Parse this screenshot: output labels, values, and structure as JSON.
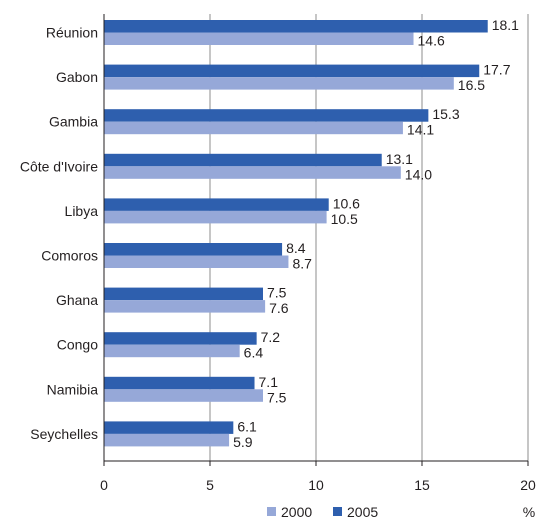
{
  "chart_data": {
    "type": "bar",
    "orientation": "horizontal",
    "categories": [
      "Réunion",
      "Gabon",
      "Gambia",
      "Côte d'Ivoire",
      "Libya",
      "Comoros",
      "Ghana",
      "Congo",
      "Namibia",
      "Seychelles"
    ],
    "series": [
      {
        "name": "2005",
        "color": "#2e5fae",
        "values": [
          18.1,
          17.7,
          15.3,
          13.1,
          10.6,
          8.4,
          7.5,
          7.2,
          7.1,
          6.1
        ]
      },
      {
        "name": "2000",
        "color": "#96a8d8",
        "values": [
          14.6,
          16.5,
          14.1,
          14.0,
          10.5,
          8.7,
          7.6,
          6.4,
          7.5,
          5.9
        ]
      }
    ],
    "value_labels_2005": [
      "18.1",
      "17.7",
      "15.3",
      "13.1",
      "10.6",
      "8.4",
      "7.5",
      "7.2",
      "7.1",
      "6.1"
    ],
    "value_labels_2000": [
      "14.6",
      "16.5",
      "14.1",
      "14.0",
      "10.5",
      "8.7",
      "7.6",
      "6.4",
      "7.5",
      "5.9"
    ],
    "x_ticks": [
      "0",
      "5",
      "10",
      "15",
      "20"
    ],
    "xlim": [
      0,
      20
    ],
    "unit": "%",
    "grid": "vertical",
    "legend": {
      "position": "bottom",
      "items": [
        "2000",
        "2005"
      ]
    }
  }
}
